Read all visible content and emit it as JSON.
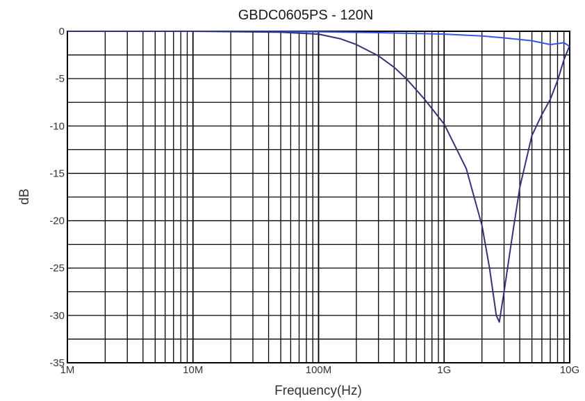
{
  "chart_data": {
    "type": "line",
    "title": "GBDC0605PS - 120N",
    "xlabel": "Frequency(Hz)",
    "ylabel": "dB",
    "x_scale": "log",
    "xlim": [
      1000000,
      10000000000
    ],
    "ylim": [
      -35,
      0
    ],
    "grid": true,
    "x_ticks": [
      {
        "value": 1000000,
        "label": "1M"
      },
      {
        "value": 10000000,
        "label": "10M"
      },
      {
        "value": 100000000,
        "label": "100M"
      },
      {
        "value": 1000000000,
        "label": "1G"
      },
      {
        "value": 10000000000,
        "label": "10G"
      }
    ],
    "y_ticks": [
      {
        "value": 0,
        "label": "0"
      },
      {
        "value": -5,
        "label": "-5"
      },
      {
        "value": -10,
        "label": "-10"
      },
      {
        "value": -15,
        "label": "-15"
      },
      {
        "value": -20,
        "label": "-20"
      },
      {
        "value": -25,
        "label": "-25"
      },
      {
        "value": -30,
        "label": "-30"
      },
      {
        "value": -35,
        "label": "-35"
      }
    ],
    "series": [
      {
        "color": "#3355ee",
        "x": [
          1000000,
          10000000,
          100000000,
          300000000,
          1000000000,
          2000000000,
          3000000000,
          5000000000,
          7000000000,
          8000000000,
          9000000000,
          10000000000
        ],
        "y": [
          0,
          0,
          -0.05,
          -0.15,
          -0.3,
          -0.5,
          -0.7,
          -1.0,
          -1.4,
          -1.3,
          -1.2,
          -1.6
        ]
      },
      {
        "color": "#333377",
        "x": [
          1000000,
          10000000,
          50000000,
          100000000,
          150000000,
          200000000,
          300000000,
          400000000,
          500000000,
          700000000,
          1000000000,
          1500000000,
          2000000000,
          2300000000,
          2600000000,
          2750000000,
          3000000000,
          3500000000,
          4000000000,
          5000000000,
          6000000000,
          7000000000,
          8000000000,
          9000000000,
          10000000000
        ],
        "y": [
          0,
          0,
          -0.1,
          -0.3,
          -0.8,
          -1.4,
          -2.6,
          -3.8,
          -5.0,
          -7.2,
          -9.8,
          -14.5,
          -20.5,
          -25.0,
          -30.0,
          -30.7,
          -27.5,
          -21.5,
          -16.5,
          -11.0,
          -8.8,
          -7.2,
          -5.2,
          -3.0,
          -1.5
        ]
      }
    ]
  }
}
